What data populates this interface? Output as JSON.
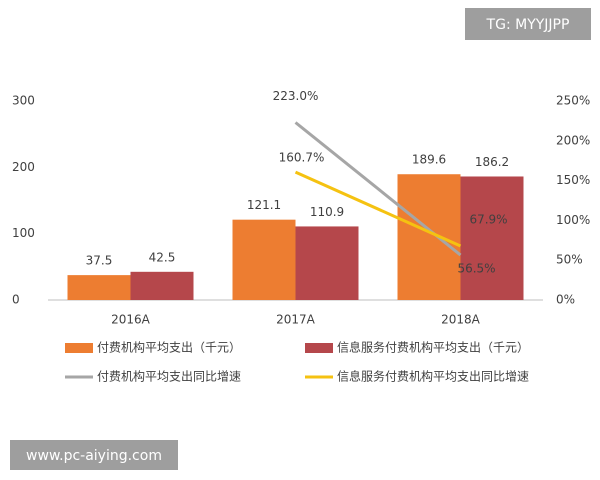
{
  "chart_data": {
    "type": "bar_line",
    "categories": [
      "2016A",
      "2017A",
      "2018A"
    ],
    "series": [
      {
        "name": "付费机构平均支出（千元）",
        "type": "bar",
        "color": "#ed7d31",
        "values": [
          37.5,
          121.1,
          189.6
        ]
      },
      {
        "name": "信息服务付费机构平均支出（千元）",
        "type": "bar",
        "color": "#b5474b",
        "values": [
          42.5,
          110.9,
          186.2
        ]
      },
      {
        "name": "付费机构平均支出同比增速",
        "type": "line",
        "axis": "y2",
        "color": "#a6a6a6",
        "values": [
          null,
          223.0,
          56.5
        ],
        "value_labels": [
          null,
          "223.0%",
          "56.5%"
        ]
      },
      {
        "name": "信息服务付费机构平均支出同比增速",
        "type": "line",
        "axis": "y2",
        "color": "#f5c211",
        "values": [
          null,
          160.7,
          67.9
        ],
        "value_labels": [
          null,
          "160.7%",
          "67.9%"
        ]
      }
    ],
    "ylim": [
      0,
      300
    ],
    "yticks": [
      0,
      100,
      200,
      300
    ],
    "y2lim": [
      0,
      250
    ],
    "y2ticks": [
      {
        "value": 0,
        "label": "0%"
      },
      {
        "value": 50,
        "label": "50%"
      },
      {
        "value": 100,
        "label": "100%"
      },
      {
        "value": 150,
        "label": "150%"
      },
      {
        "value": 200,
        "label": "200%"
      },
      {
        "value": 250,
        "label": "250%"
      }
    ],
    "annotations": [
      "TG: MYYJJPP",
      "www.pc-aiying.com"
    ]
  }
}
